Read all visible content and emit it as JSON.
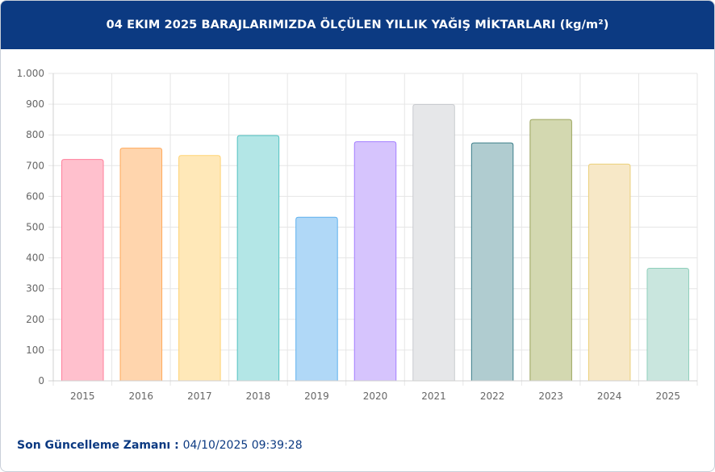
{
  "header": {
    "title": "04 EKIM 2025 BARAJLARIMIZDA ÖLÇÜLEN YILLIK YAĞIŞ MİKTARLARI (kg/m²)"
  },
  "footer": {
    "label": "Son Güncelleme Zamanı",
    "separator": " : ",
    "value": "04/10/2025 09:39:28"
  },
  "colors": {
    "header_bg": "#0c3a82",
    "footer_text": "#0c3a82",
    "grid": "#e6e6e6"
  },
  "chart_data": {
    "type": "bar",
    "title": "04 EKIM 2025 BARAJLARIMIZDA ÖLÇÜLEN YILLIK YAĞIŞ MİKTARLARI (kg/m²)",
    "xlabel": "",
    "ylabel": "",
    "ylim": [
      0,
      1000
    ],
    "yticks": [
      0,
      100,
      200,
      300,
      400,
      500,
      600,
      700,
      800,
      900,
      1000
    ],
    "ytick_labels": [
      "0",
      "100",
      "200",
      "300",
      "400",
      "500",
      "600",
      "700",
      "800",
      "900",
      "1.000"
    ],
    "grid": true,
    "legend": "none",
    "categories": [
      "2015",
      "2016",
      "2017",
      "2018",
      "2019",
      "2020",
      "2021",
      "2022",
      "2023",
      "2024",
      "2025"
    ],
    "values": [
      720,
      757,
      733,
      798,
      532,
      778,
      899,
      774,
      850,
      705,
      366
    ],
    "bar_fills": [
      "#ffc0cd",
      "#ffd5ad",
      "#ffe8b8",
      "#b3e6e6",
      "#b0d8f7",
      "#d6c4fd",
      "#e6e7e9",
      "#b0ccd0",
      "#d3d8b0",
      "#f7e8c7",
      "#c9e6de"
    ],
    "bar_strokes": [
      "#ff7f9b",
      "#ffa95a",
      "#ffd374",
      "#52c2c2",
      "#5eb0ee",
      "#a27eff",
      "#c9cbcf",
      "#3d7f8a",
      "#9aa45b",
      "#ecd07a",
      "#8fcfbb"
    ]
  }
}
